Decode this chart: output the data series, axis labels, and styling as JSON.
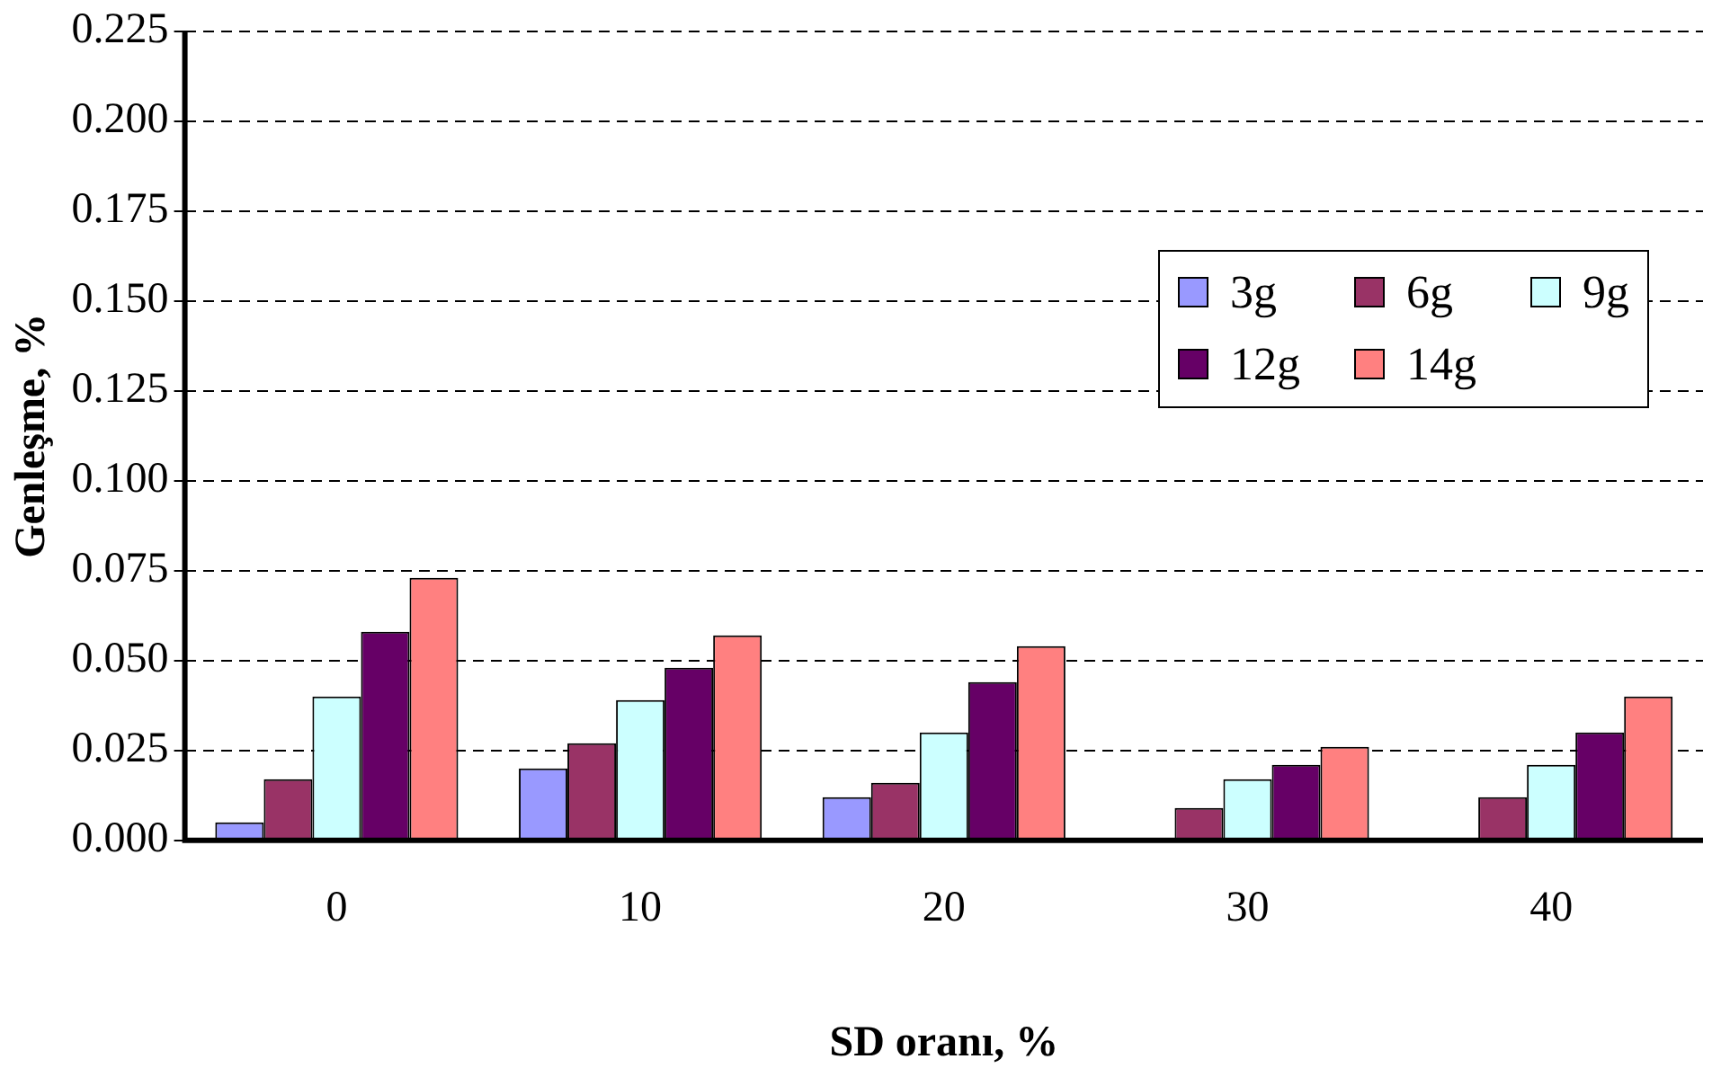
{
  "chart_data": {
    "type": "bar",
    "xlabel": "SD oranı, %",
    "ylabel": "Genleşme, %",
    "categories": [
      "0",
      "10",
      "20",
      "30",
      "40"
    ],
    "series": [
      {
        "name": "3g",
        "color": "#9999ff",
        "values": [
          0.005,
          0.02,
          0.012,
          0,
          0
        ]
      },
      {
        "name": "6g",
        "color": "#993366",
        "values": [
          0.017,
          0.027,
          0.016,
          0.009,
          0.012
        ]
      },
      {
        "name": "9g",
        "color": "#ccffff",
        "values": [
          0.04,
          0.039,
          0.03,
          0.017,
          0.021
        ]
      },
      {
        "name": "12g",
        "color": "#660066",
        "values": [
          0.058,
          0.048,
          0.044,
          0.021,
          0.03
        ]
      },
      {
        "name": "14g",
        "color": "#ff8080",
        "values": [
          0.073,
          0.057,
          0.054,
          0.026,
          0.04
        ]
      }
    ],
    "ylim": [
      0,
      0.225
    ],
    "yticks": [
      {
        "value": 0,
        "label": "0.000"
      },
      {
        "value": 0.025,
        "label": "0.025"
      },
      {
        "value": 0.05,
        "label": "0.050"
      },
      {
        "value": 0.075,
        "label": "0.075"
      },
      {
        "value": 0.1,
        "label": "0.100"
      },
      {
        "value": 0.125,
        "label": "0.125"
      },
      {
        "value": 0.15,
        "label": "0.150"
      },
      {
        "value": 0.175,
        "label": "0.175"
      },
      {
        "value": 0.2,
        "label": "0.200"
      },
      {
        "value": 0.225,
        "label": "0.225"
      }
    ],
    "grid": "y",
    "line_style": "dashed",
    "legend": "right"
  }
}
